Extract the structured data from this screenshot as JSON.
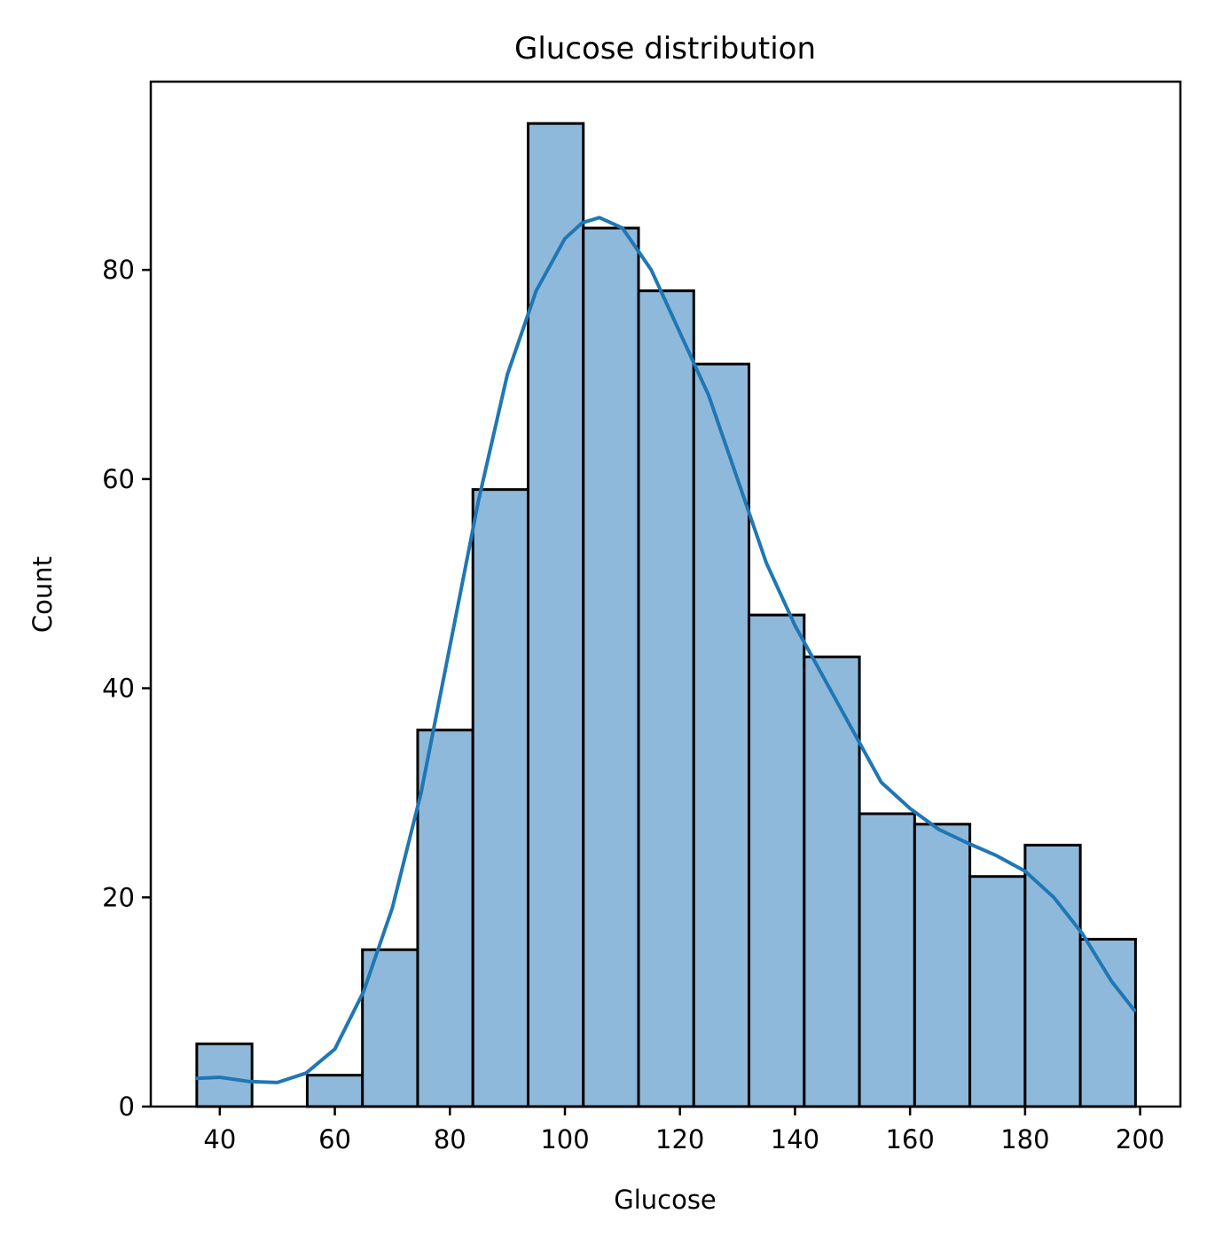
{
  "chart_data": {
    "type": "bar",
    "subtype": "histogram",
    "title": "Glucose distribution",
    "xlabel": "Glucose",
    "ylabel": "Count",
    "xlim": [
      28,
      207
    ],
    "ylim": [
      0,
      98
    ],
    "xticks": [
      40,
      60,
      80,
      100,
      120,
      140,
      160,
      180,
      200
    ],
    "yticks": [
      0,
      20,
      40,
      60,
      80
    ],
    "grid": false,
    "legend": "none",
    "bins": [
      {
        "x0": 36.0,
        "x1": 45.6,
        "count": 6
      },
      {
        "x0": 45.6,
        "x1": 55.2,
        "count": 0
      },
      {
        "x0": 55.2,
        "x1": 64.8,
        "count": 3
      },
      {
        "x0": 64.8,
        "x1": 74.4,
        "count": 15
      },
      {
        "x0": 74.4,
        "x1": 84.0,
        "count": 36
      },
      {
        "x0": 84.0,
        "x1": 93.6,
        "count": 59
      },
      {
        "x0": 93.6,
        "x1": 103.2,
        "count": 94
      },
      {
        "x0": 103.2,
        "x1": 112.8,
        "count": 84
      },
      {
        "x0": 112.8,
        "x1": 122.4,
        "count": 78
      },
      {
        "x0": 122.4,
        "x1": 132.0,
        "count": 71
      },
      {
        "x0": 132.0,
        "x1": 141.6,
        "count": 47
      },
      {
        "x0": 141.6,
        "x1": 151.2,
        "count": 43
      },
      {
        "x0": 151.2,
        "x1": 160.8,
        "count": 28
      },
      {
        "x0": 160.8,
        "x1": 170.4,
        "count": 27
      },
      {
        "x0": 170.4,
        "x1": 180.0,
        "count": 22
      },
      {
        "x0": 180.0,
        "x1": 189.6,
        "count": 25
      },
      {
        "x0": 189.6,
        "x1": 199.2,
        "count": 16
      }
    ],
    "kde": {
      "x": [
        36,
        40,
        45,
        50,
        55,
        60,
        65,
        70,
        75,
        80,
        85,
        90,
        95,
        100,
        103,
        106,
        110,
        115,
        120,
        125,
        130,
        135,
        140,
        145,
        150,
        155,
        160,
        165,
        170,
        175,
        180,
        185,
        190,
        195,
        199
      ],
      "y": [
        2.7,
        2.8,
        2.4,
        2.3,
        3.2,
        5.5,
        11,
        19,
        30,
        44,
        58,
        70,
        78,
        83,
        84.5,
        85,
        84,
        80,
        74,
        68,
        60,
        52,
        46,
        41,
        36,
        31,
        28.5,
        26.5,
        25.2,
        24,
        22.5,
        20,
        16.5,
        12,
        9.2
      ]
    },
    "colors": {
      "bar_fill": "#8fb9da",
      "bar_edge": "#000000",
      "kde_line": "#1f77b4"
    }
  }
}
